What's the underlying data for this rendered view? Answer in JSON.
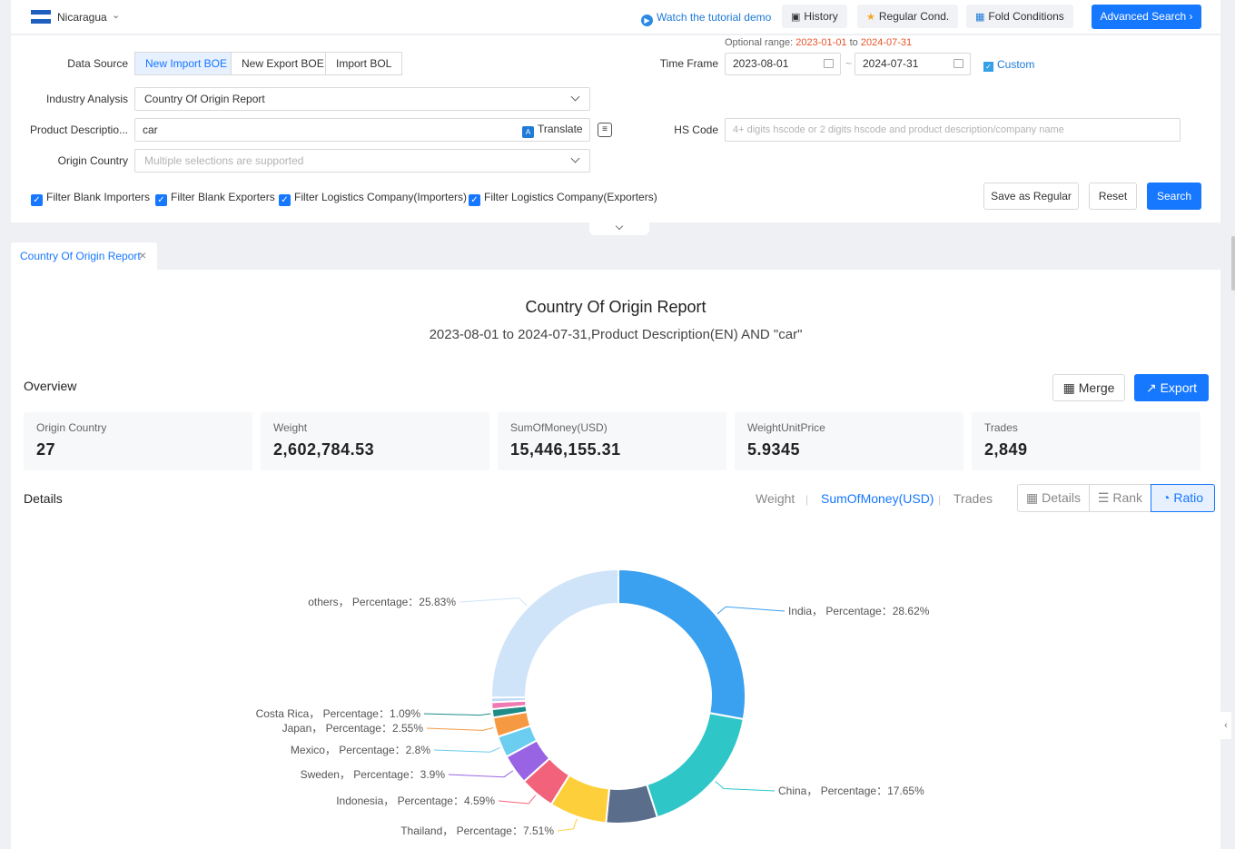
{
  "topbar": {
    "country": "Nicaragua",
    "tutorial": "Watch the tutorial demo",
    "history": "History",
    "regular_cond": "Regular Cond.",
    "fold_conditions": "Fold Conditions",
    "advanced_search": "Advanced Search"
  },
  "filters": {
    "data_source_label": "Data Source",
    "data_sources": [
      "New Import BOE",
      "New Export BOE",
      "Import BOL"
    ],
    "optional_range_label": "Optional range:",
    "optional_range_start": "2023-01-01",
    "optional_range_to": "to",
    "optional_range_end": "2024-07-31",
    "time_frame_label": "Time Frame",
    "date_start": "2023-08-01",
    "date_end": "2024-07-31",
    "custom": "Custom",
    "industry_label": "Industry Analysis",
    "industry_value": "Country Of Origin Report",
    "product_label": "Product Descriptio...",
    "product_value": "car",
    "translate": "Translate",
    "hs_label": "HS Code",
    "hs_placeholder": "4+ digits hscode or 2 digits hscode and product description/company name",
    "origin_label": "Origin Country",
    "origin_placeholder": "Multiple selections are supported",
    "checkboxes": [
      "Filter Blank Importers",
      "Filter Blank Exporters",
      "Filter Logistics Company(Importers)",
      "Filter Logistics Company(Exporters)"
    ],
    "save_regular": "Save as Regular",
    "reset": "Reset",
    "search": "Search"
  },
  "tab": {
    "label": "Country Of Origin Report"
  },
  "report": {
    "title": "Country Of Origin Report",
    "subtitle": "2023-08-01 to 2024-07-31,Product Description(EN) AND \"car\"",
    "overview": "Overview",
    "merge": "Merge",
    "export": "Export",
    "cards": [
      {
        "label": "Origin Country",
        "value": "27"
      },
      {
        "label": "Weight",
        "value": "2,602,784.53"
      },
      {
        "label": "SumOfMoney(USD)",
        "value": "15,446,155.31"
      },
      {
        "label": "WeightUnitPrice",
        "value": "5.9345"
      },
      {
        "label": "Trades",
        "value": "2,849"
      }
    ],
    "details": "Details",
    "metrics": [
      "Weight",
      "SumOfMoney(USD)",
      "Trades"
    ],
    "views": [
      "Details",
      "Rank",
      "Ratio"
    ]
  },
  "chart_data": {
    "type": "pie",
    "title": "",
    "label_separator": "，  Percentage：",
    "slices": [
      {
        "name": "India",
        "value": 28.62,
        "color": "#3aa0f0"
      },
      {
        "name": "China",
        "value": 17.65,
        "color": "#2fc6c8"
      },
      {
        "name": "",
        "value": 6.7,
        "color": "#5a6e8c"
      },
      {
        "name": "Thailand",
        "value": 7.51,
        "color": "#fdd03b"
      },
      {
        "name": "Indonesia",
        "value": 4.59,
        "color": "#f2637b"
      },
      {
        "name": "Sweden",
        "value": 3.9,
        "color": "#9964e3"
      },
      {
        "name": "Mexico",
        "value": 2.8,
        "color": "#6bcdef"
      },
      {
        "name": "Japan",
        "value": 2.55,
        "color": "#f59a43"
      },
      {
        "name": "Costa Rica",
        "value": 1.09,
        "color": "#1d8b86"
      },
      {
        "name": "",
        "value": 0.9,
        "color": "#f07ab4"
      },
      {
        "name": "",
        "value": 0.6,
        "color": "#bcd8f5"
      },
      {
        "name": "others",
        "value": 25.83,
        "color": "#cfe4f9"
      }
    ]
  }
}
